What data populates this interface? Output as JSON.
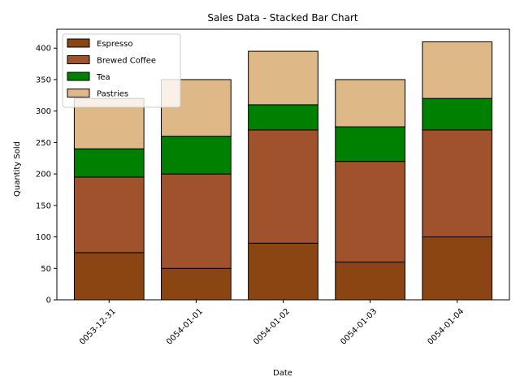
{
  "chart_data": {
    "type": "bar",
    "stacked": true,
    "title": "Sales Data - Stacked Bar Chart",
    "xlabel": "Date",
    "ylabel": "Quantity Sold",
    "categories": [
      "0053-12-31",
      "0054-01-01",
      "0054-01-02",
      "0054-01-03",
      "0054-01-04"
    ],
    "ylim": [
      0,
      430
    ],
    "yticks": [
      0,
      50,
      100,
      150,
      200,
      250,
      300,
      350,
      400
    ],
    "grid": false,
    "legend_position": "top-left",
    "series": [
      {
        "name": "Espresso",
        "color": "#8B4513",
        "values": [
          75,
          50,
          90,
          60,
          100
        ]
      },
      {
        "name": "Brewed Coffee",
        "color": "#A0522D",
        "values": [
          120,
          150,
          180,
          160,
          170
        ]
      },
      {
        "name": "Tea",
        "color": "#008000",
        "values": [
          45,
          60,
          40,
          55,
          50
        ]
      },
      {
        "name": "Pastries",
        "color": "#DEB887",
        "values": [
          80,
          90,
          85,
          75,
          90
        ]
      }
    ]
  }
}
